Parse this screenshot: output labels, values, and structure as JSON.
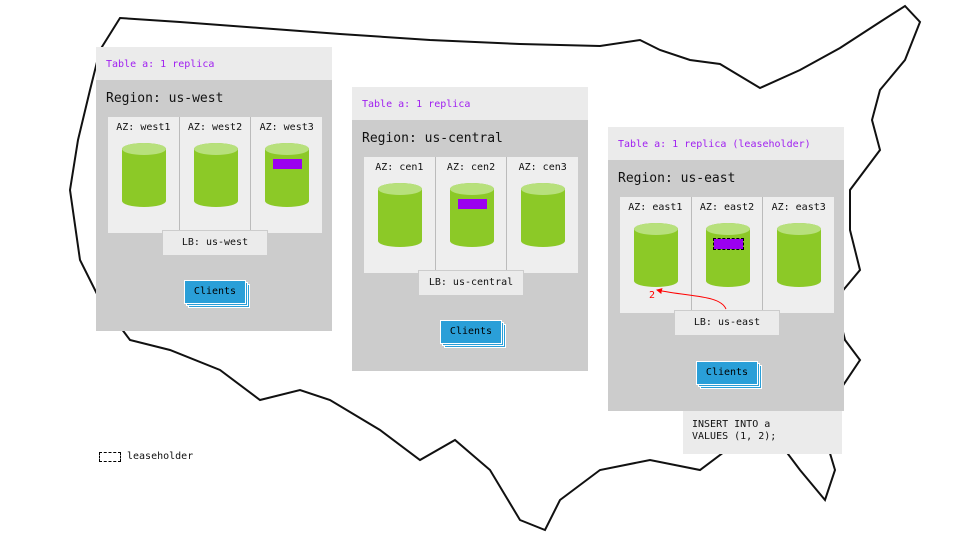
{
  "regions": [
    {
      "table": "Table a: 1 replica",
      "region": "Region: us-west",
      "azs": [
        "AZ: west1",
        "AZ: west2",
        "AZ: west3"
      ],
      "lb": "LB: us-west",
      "clients": "Clients"
    },
    {
      "table": "Table a: 1 replica",
      "region": "Region: us-central",
      "azs": [
        "AZ: cen1",
        "AZ: cen2",
        "AZ: cen3"
      ],
      "lb": "LB: us-central",
      "clients": "Clients"
    },
    {
      "table": "Table a: 1 replica (leaseholder)",
      "region": "Region: us-east",
      "azs": [
        "AZ: east1",
        "AZ: east2",
        "AZ: east3"
      ],
      "lb": "LB: us-east",
      "clients": "Clients"
    }
  ],
  "arrow_label": "2",
  "sql": [
    "INSERT INTO a",
    "VALUES (1, 2);"
  ],
  "legend": {
    "label": "leaseholder"
  },
  "colors": {
    "replica": "#9b00f0",
    "node": "#8cc927",
    "clients": "#2a9fd8",
    "arrow": "#ff0000"
  }
}
